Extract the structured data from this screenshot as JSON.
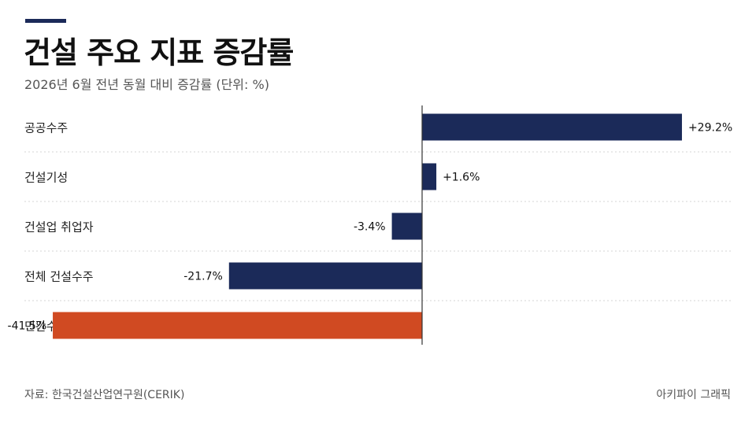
{
  "header": {
    "title": "건설 주요 지표 증감률",
    "subtitle": "2026년 6월 전년 동월 대비 증감률 (단위: %)"
  },
  "footer": {
    "source": "자료: 한국건설산업연구원(CERIK)",
    "credit": "아키파이 그래픽"
  },
  "colors": {
    "accent": "#1b2a59",
    "bar_default": "#1b2a59",
    "bar_highlight": "#d04a22"
  },
  "chart_data": {
    "type": "bar",
    "orientation": "horizontal",
    "categories": [
      "공공수주",
      "건설기성",
      "건설업 취업자",
      "전체 건설수주",
      "민간수주"
    ],
    "values": [
      29.2,
      1.6,
      -3.4,
      -21.7,
      -41.5
    ],
    "value_labels": [
      "+29.2%",
      "+1.6%",
      "-3.4%",
      "-21.7%",
      "-41.5%"
    ],
    "highlight_category": "민간수주",
    "xlim": [
      -48,
      30
    ],
    "grid": "dotted row separators",
    "zero_line": true
  }
}
